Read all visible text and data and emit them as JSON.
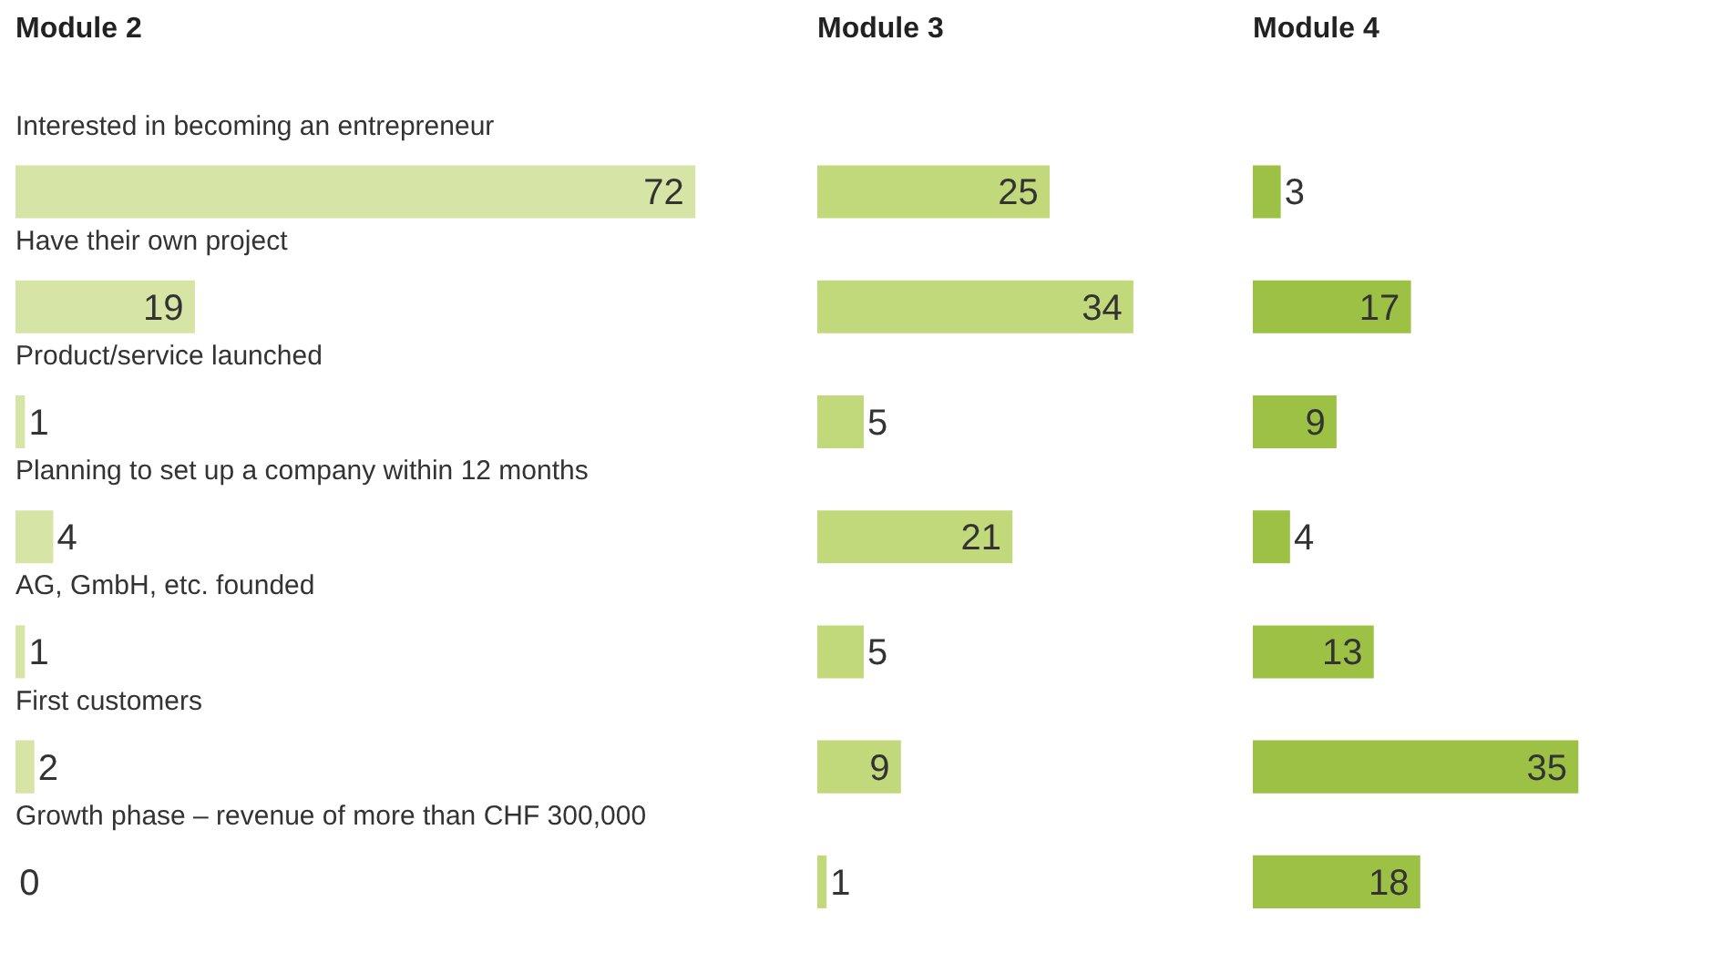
{
  "chart_data": [
    {
      "type": "bar",
      "orientation": "horizontal",
      "title": "Module 2",
      "categories": [
        "Interested in becoming an entrepreneur",
        "Have their own project",
        "Product/service launched",
        "Planning to set up a company within 12 months",
        "AG, GmbH, etc. founded",
        "First customers",
        "Growth phase – revenue of more than CHF 300,000"
      ],
      "values": [
        72,
        19,
        1,
        4,
        1,
        2,
        0
      ],
      "color": "#d6e4a6",
      "data_labels": true
    },
    {
      "type": "bar",
      "orientation": "horizontal",
      "title": "Module 3",
      "categories": [
        null,
        null,
        null,
        null,
        null,
        null,
        null
      ],
      "values": [
        25,
        34,
        5,
        21,
        5,
        9,
        1
      ],
      "color": "#c2d97b",
      "data_labels": true
    },
    {
      "type": "bar",
      "orientation": "horizontal",
      "title": "Module 4",
      "categories": [
        null,
        null,
        null,
        null,
        null,
        null,
        null
      ],
      "values": [
        3,
        17,
        9,
        4,
        13,
        35,
        18
      ],
      "color": "#9dc144",
      "data_labels": true
    }
  ]
}
